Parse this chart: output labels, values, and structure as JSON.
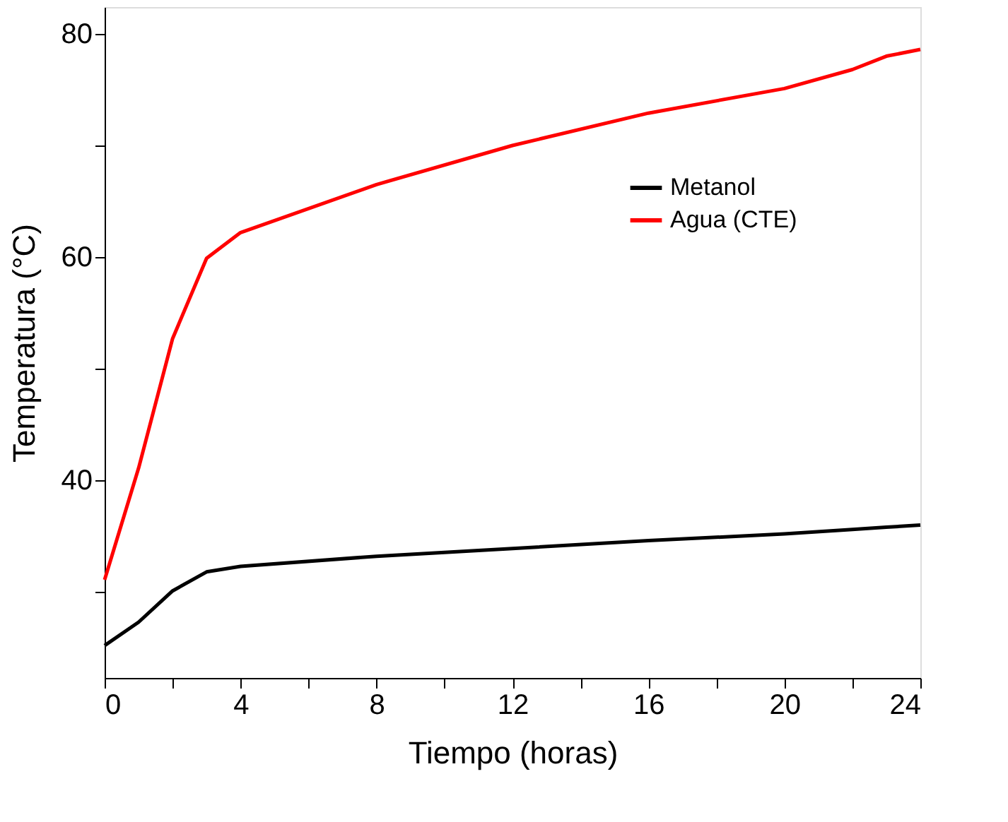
{
  "chart_data": {
    "type": "line",
    "xlabel": "Tiempo (horas)",
    "ylabel": "Temperatura (°C)",
    "x": [
      0,
      1,
      2,
      3,
      4,
      8,
      12,
      16,
      20,
      22,
      23,
      24
    ],
    "series": [
      {
        "name": "Metanol",
        "color": "#000000",
        "values": [
          25.2,
          27.3,
          30.1,
          31.8,
          32.3,
          33.2,
          33.9,
          34.6,
          35.2,
          35.6,
          35.8,
          36.0
        ]
      },
      {
        "name": "Agua (CTE)",
        "color": "#ff0000",
        "values": [
          31.1,
          41.1,
          52.7,
          59.9,
          62.2,
          66.5,
          70.0,
          72.9,
          75.1,
          76.8,
          78.0,
          78.6
        ]
      }
    ],
    "xlim": [
      0,
      24
    ],
    "ylim": [
      22.3,
      82.4
    ],
    "xticks": [
      0,
      {
        "value": 2,
        "label": null
      },
      4,
      {
        "value": 6,
        "label": null
      },
      8,
      {
        "value": 10,
        "label": null
      },
      12,
      {
        "value": 14,
        "label": null
      },
      16,
      {
        "value": 18,
        "label": null
      },
      20,
      {
        "value": 22,
        "label": null
      },
      24
    ],
    "yticks": [
      {
        "value": 30,
        "label": null
      },
      40,
      {
        "value": 50,
        "label": null
      },
      60,
      {
        "value": 70,
        "label": null
      },
      80
    ],
    "grid": false,
    "legend": "top right",
    "marker": "none",
    "line_style": "solid"
  }
}
